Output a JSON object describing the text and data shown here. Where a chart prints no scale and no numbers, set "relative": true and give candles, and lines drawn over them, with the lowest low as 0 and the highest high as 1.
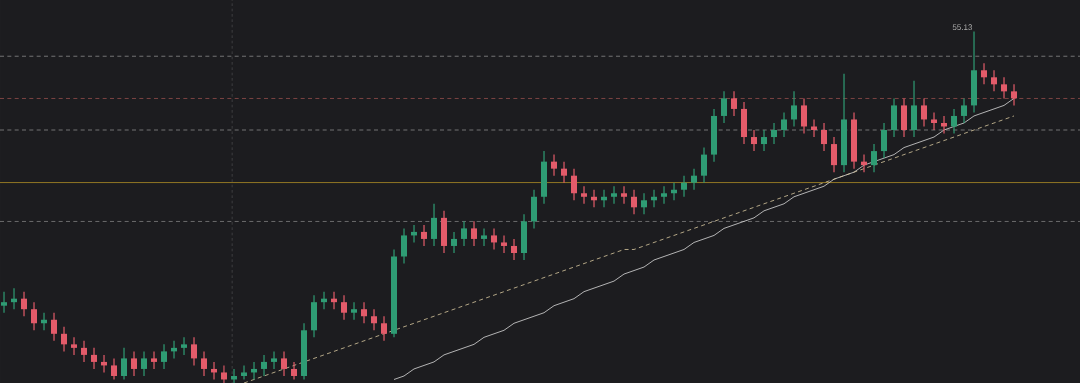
{
  "chart_data": {
    "type": "candlestick",
    "relative": true,
    "categories": [
      null,
      null,
      null,
      null,
      null,
      null,
      null,
      null,
      null,
      null,
      null,
      null,
      null,
      null,
      null,
      null,
      null,
      null,
      null,
      null,
      null,
      null,
      null,
      null,
      null,
      null,
      null,
      null,
      null,
      null,
      null,
      null,
      null,
      null,
      null,
      null,
      null,
      null,
      null,
      null,
      null,
      null,
      null,
      null,
      null,
      null,
      null,
      null,
      null,
      null,
      null,
      null,
      null,
      null,
      null,
      null,
      null,
      null,
      null,
      null,
      null,
      null,
      null,
      null,
      null,
      null,
      null,
      null,
      null,
      null,
      null,
      null,
      null,
      null,
      null,
      null,
      null,
      null,
      null,
      null,
      null,
      null,
      null,
      null,
      null,
      null,
      null,
      null,
      null,
      null,
      null,
      null,
      null,
      null,
      null,
      null,
      null,
      null,
      null,
      null,
      null,
      null
    ],
    "colors": [
      "#2f9c74",
      "#2f9c74",
      "#e35b6a",
      "#e35b6a",
      "#2f9c74",
      "#e35b6a",
      "#e35b6a",
      "#e35b6a",
      "#e35b6a",
      "#e35b6a",
      "#e35b6a",
      "#e35b6a",
      "#2f9c74",
      "#e35b6a",
      "#2f9c74",
      "#e35b6a",
      "#2f9c74",
      "#2f9c74",
      "#2f9c74",
      "#e35b6a",
      "#e35b6a",
      "#e35b6a",
      "#e35b6a",
      "#2f9c74",
      "#2f9c74",
      "#2f9c74",
      "#2f9c74",
      "#2f9c74",
      "#e35b6a",
      "#e35b6a",
      "#2f9c74",
      "#2f9c74",
      "#2f9c74",
      "#e35b6a",
      "#e35b6a",
      "#2f9c74",
      "#e35b6a",
      "#e35b6a",
      "#e35b6a",
      "#2f9c74",
      "#2f9c74",
      "#2f9c74",
      "#e35b6a",
      "#2f9c74",
      "#e35b6a",
      "#2f9c74",
      "#2f9c74",
      "#e35b6a",
      "#2f9c74",
      "#e35b6a",
      "#e35b6a",
      "#e35b6a",
      "#2f9c74",
      "#2f9c74",
      "#2f9c74",
      "#e35b6a",
      "#e35b6a",
      "#e35b6a",
      "#e35b6a",
      "#e35b6a",
      "#2f9c74",
      "#2f9c74",
      "#e35b6a",
      "#e35b6a",
      "#2f9c74",
      "#2f9c74",
      "#2f9c74",
      "#2f9c74",
      "#2f9c74",
      "#2f9c74",
      "#2f9c74",
      "#2f9c74",
      "#2f9c74",
      "#e35b6a",
      "#e35b6a",
      "#e35b6a",
      "#2f9c74",
      "#2f9c74",
      "#2f9c74",
      "#2f9c74",
      "#e35b6a",
      "#e35b6a",
      "#e35b6a",
      "#e35b6a",
      "#2f9c74",
      "#e35b6a",
      "#e35b6a",
      "#2f9c74",
      "#2f9c74",
      "#2f9c74",
      "#e35b6a",
      "#2f9c74",
      "#e35b6a",
      "#e35b6a",
      "#e35b6a",
      "#2f9c74",
      "#2f9c74",
      "#2f9c74",
      "#e35b6a",
      "#e35b6a",
      "#e35b6a",
      "#e35b6a"
    ],
    "ohlc": [
      [
        0.22,
        0.26,
        0.2,
        0.23
      ],
      [
        0.23,
        0.27,
        0.21,
        0.24
      ],
      [
        0.24,
        0.26,
        0.19,
        0.21
      ],
      [
        0.21,
        0.23,
        0.15,
        0.17
      ],
      [
        0.17,
        0.2,
        0.15,
        0.18
      ],
      [
        0.18,
        0.2,
        0.12,
        0.14
      ],
      [
        0.14,
        0.16,
        0.09,
        0.11
      ],
      [
        0.11,
        0.13,
        0.08,
        0.1
      ],
      [
        0.1,
        0.12,
        0.06,
        0.08
      ],
      [
        0.08,
        0.1,
        0.04,
        0.06
      ],
      [
        0.06,
        0.08,
        0.03,
        0.05
      ],
      [
        0.05,
        0.07,
        0.01,
        0.02
      ],
      [
        0.02,
        0.1,
        0.01,
        0.07
      ],
      [
        0.07,
        0.09,
        0.02,
        0.04
      ],
      [
        0.04,
        0.09,
        0.02,
        0.07
      ],
      [
        0.07,
        0.09,
        0.04,
        0.06
      ],
      [
        0.06,
        0.11,
        0.04,
        0.09
      ],
      [
        0.09,
        0.12,
        0.07,
        0.1
      ],
      [
        0.1,
        0.13,
        0.08,
        0.11
      ],
      [
        0.11,
        0.13,
        0.05,
        0.07
      ],
      [
        0.07,
        0.09,
        0.02,
        0.04
      ],
      [
        0.04,
        0.06,
        0.01,
        0.03
      ],
      [
        0.03,
        0.05,
        0.0,
        0.01
      ],
      [
        0.01,
        0.04,
        0.0,
        0.02
      ],
      [
        0.02,
        0.05,
        0.01,
        0.03
      ],
      [
        0.03,
        0.06,
        0.01,
        0.04
      ],
      [
        0.04,
        0.08,
        0.02,
        0.06
      ],
      [
        0.06,
        0.09,
        0.04,
        0.07
      ],
      [
        0.07,
        0.09,
        0.02,
        0.04
      ],
      [
        0.04,
        0.06,
        0.01,
        0.02
      ],
      [
        0.02,
        0.17,
        0.01,
        0.15
      ],
      [
        0.15,
        0.25,
        0.13,
        0.23
      ],
      [
        0.23,
        0.26,
        0.21,
        0.24
      ],
      [
        0.24,
        0.26,
        0.21,
        0.23
      ],
      [
        0.23,
        0.25,
        0.18,
        0.2
      ],
      [
        0.2,
        0.23,
        0.18,
        0.21
      ],
      [
        0.21,
        0.23,
        0.17,
        0.19
      ],
      [
        0.19,
        0.21,
        0.15,
        0.17
      ],
      [
        0.17,
        0.19,
        0.12,
        0.14
      ],
      [
        0.14,
        0.38,
        0.13,
        0.36
      ],
      [
        0.36,
        0.44,
        0.34,
        0.42
      ],
      [
        0.42,
        0.45,
        0.4,
        0.43
      ],
      [
        0.43,
        0.45,
        0.39,
        0.41
      ],
      [
        0.41,
        0.51,
        0.39,
        0.47
      ],
      [
        0.47,
        0.49,
        0.37,
        0.39
      ],
      [
        0.39,
        0.43,
        0.37,
        0.41
      ],
      [
        0.41,
        0.46,
        0.39,
        0.44
      ],
      [
        0.44,
        0.46,
        0.39,
        0.41
      ],
      [
        0.41,
        0.44,
        0.39,
        0.42
      ],
      [
        0.42,
        0.44,
        0.38,
        0.4
      ],
      [
        0.4,
        0.42,
        0.37,
        0.39
      ],
      [
        0.39,
        0.41,
        0.35,
        0.37
      ],
      [
        0.37,
        0.48,
        0.35,
        0.46
      ],
      [
        0.46,
        0.55,
        0.44,
        0.53
      ],
      [
        0.53,
        0.66,
        0.51,
        0.63
      ],
      [
        0.63,
        0.65,
        0.59,
        0.61
      ],
      [
        0.61,
        0.63,
        0.57,
        0.59
      ],
      [
        0.59,
        0.61,
        0.52,
        0.54
      ],
      [
        0.54,
        0.56,
        0.51,
        0.53
      ],
      [
        0.53,
        0.55,
        0.5,
        0.52
      ],
      [
        0.52,
        0.55,
        0.5,
        0.53
      ],
      [
        0.53,
        0.56,
        0.51,
        0.54
      ],
      [
        0.54,
        0.56,
        0.51,
        0.53
      ],
      [
        0.53,
        0.55,
        0.48,
        0.5
      ],
      [
        0.5,
        0.54,
        0.48,
        0.52
      ],
      [
        0.52,
        0.55,
        0.5,
        0.53
      ],
      [
        0.53,
        0.56,
        0.51,
        0.54
      ],
      [
        0.54,
        0.57,
        0.52,
        0.55
      ],
      [
        0.55,
        0.59,
        0.53,
        0.57
      ],
      [
        0.57,
        0.61,
        0.55,
        0.59
      ],
      [
        0.59,
        0.67,
        0.57,
        0.65
      ],
      [
        0.65,
        0.78,
        0.63,
        0.76
      ],
      [
        0.76,
        0.83,
        0.74,
        0.81
      ],
      [
        0.81,
        0.83,
        0.76,
        0.78
      ],
      [
        0.78,
        0.8,
        0.68,
        0.7
      ],
      [
        0.7,
        0.72,
        0.66,
        0.68
      ],
      [
        0.68,
        0.72,
        0.66,
        0.7
      ],
      [
        0.7,
        0.74,
        0.68,
        0.72
      ],
      [
        0.72,
        0.77,
        0.7,
        0.75
      ],
      [
        0.75,
        0.83,
        0.73,
        0.79
      ],
      [
        0.79,
        0.81,
        0.71,
        0.73
      ],
      [
        0.73,
        0.75,
        0.7,
        0.72
      ],
      [
        0.72,
        0.74,
        0.66,
        0.68
      ],
      [
        0.68,
        0.7,
        0.6,
        0.62
      ],
      [
        0.62,
        0.88,
        0.6,
        0.75
      ],
      [
        0.75,
        0.77,
        0.61,
        0.63
      ],
      [
        0.63,
        0.65,
        0.6,
        0.62
      ],
      [
        0.62,
        0.68,
        0.6,
        0.66
      ],
      [
        0.66,
        0.74,
        0.64,
        0.72
      ],
      [
        0.72,
        0.81,
        0.7,
        0.79
      ],
      [
        0.79,
        0.81,
        0.7,
        0.72
      ],
      [
        0.72,
        0.86,
        0.7,
        0.79
      ],
      [
        0.79,
        0.81,
        0.73,
        0.75
      ],
      [
        0.75,
        0.77,
        0.72,
        0.74
      ],
      [
        0.74,
        0.76,
        0.71,
        0.73
      ],
      [
        0.73,
        0.78,
        0.71,
        0.76
      ],
      [
        0.76,
        0.81,
        0.74,
        0.79
      ],
      [
        0.79,
        1.0,
        0.77,
        0.89
      ],
      [
        0.89,
        0.91,
        0.85,
        0.87
      ],
      [
        0.87,
        0.89,
        0.83,
        0.85
      ],
      [
        0.85,
        0.87,
        0.81,
        0.83
      ],
      [
        0.83,
        0.85,
        0.79,
        0.81
      ]
    ],
    "series": [
      {
        "type": "line",
        "color": "#d9d9d9",
        "line_style": "solid",
        "values": [
          null,
          null,
          null,
          null,
          null,
          null,
          null,
          null,
          null,
          null,
          null,
          null,
          null,
          null,
          null,
          null,
          null,
          null,
          null,
          null,
          null,
          null,
          null,
          null,
          null,
          null,
          null,
          null,
          null,
          null,
          null,
          null,
          null,
          null,
          null,
          null,
          null,
          null,
          null,
          0.01,
          0.02,
          0.04,
          0.05,
          0.06,
          0.08,
          0.09,
          0.1,
          0.11,
          0.13,
          0.14,
          0.15,
          0.17,
          0.18,
          0.19,
          0.2,
          0.22,
          0.23,
          0.24,
          0.26,
          0.27,
          0.28,
          0.29,
          0.31,
          0.32,
          0.33,
          0.35,
          0.36,
          0.37,
          0.38,
          0.4,
          0.41,
          0.42,
          0.44,
          0.45,
          0.46,
          0.47,
          0.49,
          0.5,
          0.51,
          0.53,
          0.54,
          0.55,
          0.56,
          0.58,
          0.59,
          0.6,
          0.62,
          0.63,
          0.64,
          0.65,
          0.67,
          0.68,
          0.69,
          0.7,
          0.72,
          0.73,
          0.74,
          0.76,
          0.77,
          0.78,
          0.79,
          0.81
        ]
      },
      {
        "type": "line",
        "color": "#d9c9a0",
        "line_style": "dashed",
        "values": [
          null,
          null,
          null,
          null,
          null,
          null,
          null,
          null,
          null,
          null,
          null,
          null,
          null,
          null,
          null,
          null,
          null,
          null,
          null,
          null,
          null,
          null,
          null,
          null,
          0.0,
          0.01,
          0.02,
          0.03,
          0.04,
          0.05,
          0.06,
          0.07,
          0.08,
          0.09,
          0.1,
          0.11,
          0.12,
          0.13,
          0.14,
          0.15,
          0.16,
          0.17,
          0.18,
          0.19,
          0.2,
          0.21,
          0.22,
          0.23,
          0.24,
          0.25,
          0.26,
          0.27,
          0.28,
          0.29,
          0.3,
          0.31,
          0.32,
          0.33,
          0.34,
          0.35,
          0.36,
          0.37,
          0.38,
          0.38,
          0.39,
          0.4,
          0.41,
          0.42,
          0.43,
          0.44,
          0.45,
          0.46,
          0.47,
          0.48,
          0.49,
          0.5,
          0.51,
          0.52,
          0.53,
          0.54,
          0.55,
          0.56,
          0.57,
          0.58,
          0.59,
          0.6,
          0.61,
          0.62,
          0.63,
          0.64,
          0.65,
          0.66,
          0.67,
          0.68,
          0.69,
          0.7,
          0.71,
          0.72,
          0.73,
          0.74,
          0.75,
          0.76
        ]
      }
    ],
    "ref_lines": [
      {
        "axis": "y",
        "value": 0.93,
        "color": "#8a8a8a",
        "line_style": "dashed"
      },
      {
        "axis": "y",
        "value": 0.81,
        "color": "#a0524f",
        "line_style": "dashed"
      },
      {
        "axis": "y",
        "value": 0.72,
        "color": "#8a8a8a",
        "line_style": "dashed"
      },
      {
        "axis": "y",
        "value": 0.57,
        "color": "#c9a227",
        "line_style": "solid"
      },
      {
        "axis": "y",
        "value": 0.46,
        "color": "#8a8a8a",
        "line_style": "dashed"
      }
    ],
    "annotations": [
      "55.13"
    ]
  }
}
